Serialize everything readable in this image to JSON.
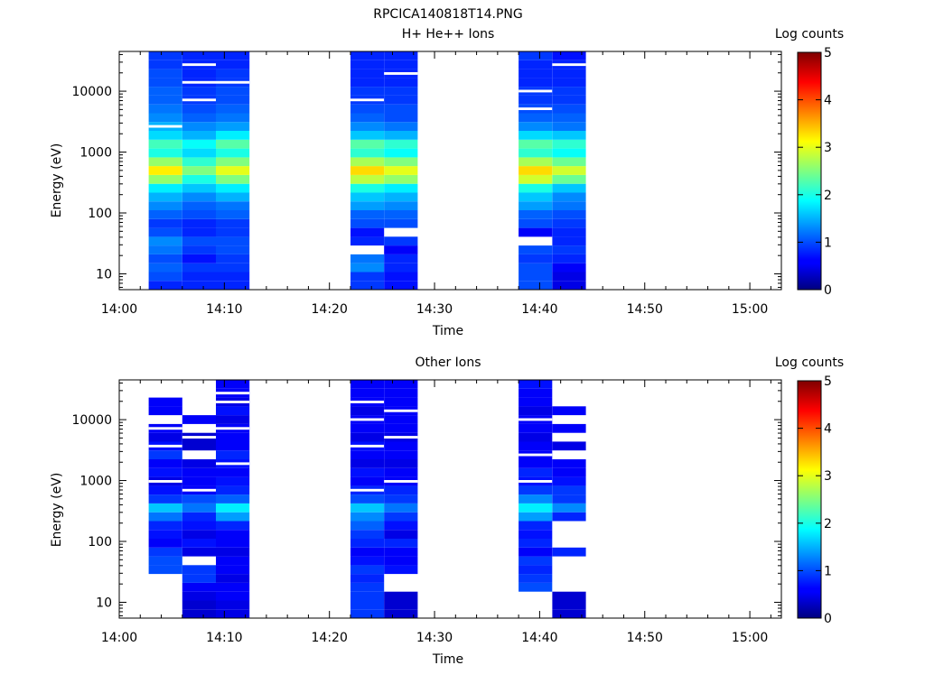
{
  "page_title": "RPCICA140818T14.PNG",
  "chart_data": [
    {
      "type": "heatmap",
      "title": "H+ He++ Ions",
      "xlabel": "Time",
      "ylabel": "Energy (eV)",
      "colorbar_label": "Log counts",
      "x_ticks": [
        "14:00",
        "14:10",
        "14:20",
        "14:30",
        "14:40",
        "14:50",
        "15:00"
      ],
      "x_range_min": [
        0,
        63
      ],
      "y_scale": "log",
      "y_ticks": [
        10,
        100,
        1000,
        10000
      ],
      "y_range": [
        5.5,
        45000
      ],
      "colorbar_ticks": [
        0,
        1,
        2,
        3,
        4,
        5
      ],
      "colorbar_range": [
        0,
        5
      ],
      "grid": false,
      "columns": [
        {
          "t0": 2.8,
          "t1": 6.0,
          "profile": [
            0.8,
            1.0,
            1.1,
            1.0,
            1.2,
            1.3,
            1.0,
            0.9,
            1.1,
            1.3,
            1.5,
            1.8,
            2.6,
            3.2,
            2.6,
            2.0,
            2.2,
            1.7,
            1.5,
            1.3,
            1.2,
            1.1,
            1.1,
            1.0,
            1.0,
            0.9,
            0.9
          ],
          "gaps": [
            18
          ]
        },
        {
          "t0": 6.0,
          "t1": 9.2,
          "profile": [
            0.8,
            0.8,
            0.9,
            0.7,
            0.9,
            1.0,
            0.8,
            0.8,
            1.0,
            1.1,
            1.3,
            1.6,
            2.0,
            2.5,
            2.1,
            1.7,
            1.9,
            1.5,
            1.3,
            1.1,
            1.0,
            0.9,
            0.9,
            0.8,
            0.8,
            0.8,
            0.8
          ],
          "gaps": [
            21,
            23,
            25
          ]
        },
        {
          "t0": 9.2,
          "t1": 12.4,
          "profile": [
            0.8,
            0.8,
            0.9,
            0.9,
            1.0,
            1.0,
            0.9,
            0.9,
            1.1,
            1.2,
            1.5,
            1.8,
            2.5,
            3.0,
            2.5,
            2.0,
            2.3,
            1.8,
            1.4,
            1.2,
            1.1,
            1.0,
            1.0,
            0.9,
            0.9,
            0.8,
            0.8
          ],
          "gaps": [
            23
          ]
        },
        {
          "t0": 22.0,
          "t1": 25.2,
          "profile": [
            0.9,
            0.9,
            1.3,
            1.2,
            null,
            0.8,
            0.7,
            1.0,
            1.1,
            1.4,
            1.6,
            2.0,
            2.8,
            3.3,
            2.7,
            2.1,
            2.3,
            1.6,
            1.3,
            1.1,
            1.0,
            0.9,
            0.9,
            0.8,
            0.8,
            0.8,
            0.8
          ],
          "gaps": [
            21
          ]
        },
        {
          "t0": 25.2,
          "t1": 28.4,
          "profile": [
            0.7,
            0.7,
            0.8,
            0.8,
            0.6,
            0.9,
            null,
            1.0,
            1.1,
            1.3,
            1.5,
            1.8,
            2.6,
            3.0,
            2.5,
            1.9,
            2.1,
            1.5,
            1.2,
            1.0,
            1.0,
            0.9,
            0.9,
            0.8,
            0.8,
            0.8,
            0.8
          ],
          "gaps": [
            24
          ]
        },
        {
          "t0": 38.0,
          "t1": 41.2,
          "profile": [
            1.0,
            1.0,
            1.0,
            0.9,
            1.0,
            null,
            0.6,
            1.0,
            1.1,
            1.4,
            1.6,
            2.0,
            2.9,
            3.3,
            2.7,
            2.1,
            2.3,
            1.7,
            1.3,
            1.1,
            1.0,
            0.9,
            0.9,
            0.8,
            0.8,
            0.8,
            0.9
          ],
          "gaps": [
            20,
            22
          ]
        },
        {
          "t0": 41.2,
          "t1": 44.4,
          "profile": [
            0.5,
            0.5,
            0.6,
            0.8,
            0.9,
            0.8,
            0.8,
            0.9,
            1.0,
            1.2,
            1.3,
            1.6,
            2.4,
            2.9,
            2.4,
            1.9,
            2.1,
            1.6,
            1.2,
            1.1,
            1.0,
            0.9,
            0.9,
            0.8,
            0.8,
            0.8,
            0.7
          ],
          "gaps": [
            25
          ]
        }
      ]
    },
    {
      "type": "heatmap",
      "title": "Other Ions",
      "xlabel": "Time",
      "ylabel": "Energy (eV)",
      "colorbar_label": "Log counts",
      "x_ticks": [
        "14:00",
        "14:10",
        "14:20",
        "14:30",
        "14:40",
        "14:50",
        "15:00"
      ],
      "x_range_min": [
        0,
        63
      ],
      "y_scale": "log",
      "y_ticks": [
        10,
        100,
        1000,
        10000
      ],
      "y_range": [
        5.5,
        45000
      ],
      "colorbar_ticks": [
        0,
        1,
        2,
        3,
        4,
        5
      ],
      "colorbar_range": [
        0,
        5
      ],
      "grid": false,
      "columns": [
        {
          "t0": 2.8,
          "t1": 6.0,
          "profile": [
            null,
            null,
            null,
            null,
            null,
            1.0,
            1.0,
            0.9,
            0.6,
            0.7,
            0.8,
            1.2,
            1.6,
            0.9,
            0.7,
            0.5,
            0.7,
            0.6,
            0.9,
            0.7,
            0.5,
            0.6,
            null,
            0.6,
            0.6,
            null,
            null
          ],
          "gaps": [
            15,
            19,
            21
          ]
        },
        {
          "t0": 6.0,
          "t1": 9.2,
          "profile": [
            0.4,
            0.4,
            0.5,
            0.6,
            0.9,
            0.9,
            null,
            0.5,
            0.7,
            0.5,
            0.7,
            0.8,
            1.2,
            1.0,
            0.6,
            0.6,
            0.6,
            0.5,
            null,
            0.4,
            0.4,
            null,
            0.6,
            null,
            null,
            null,
            null
          ],
          "gaps": [
            14,
            20
          ]
        },
        {
          "t0": 9.2,
          "t1": 12.4,
          "profile": [
            0.5,
            0.5,
            0.6,
            0.6,
            0.5,
            0.6,
            0.6,
            0.5,
            0.6,
            0.6,
            0.8,
            1.4,
            1.8,
            1.1,
            0.8,
            0.7,
            0.6,
            0.7,
            0.8,
            0.6,
            0.6,
            0.6,
            0.5,
            0.7,
            0.5,
            0.6,
            0.6
          ],
          "gaps": [
            17,
            21,
            24,
            25
          ]
        },
        {
          "t0": 22.0,
          "t1": 25.2,
          "profile": [
            0.9,
            0.9,
            0.9,
            0.9,
            0.8,
            0.9,
            0.7,
            0.6,
            0.8,
            0.9,
            1.1,
            1.3,
            1.6,
            1.0,
            0.8,
            0.6,
            0.7,
            0.5,
            0.6,
            0.7,
            0.5,
            0.6,
            0.6,
            0.5,
            0.6,
            0.6,
            0.6
          ],
          "gaps": [
            14,
            19,
            22,
            24
          ]
        },
        {
          "t0": 25.2,
          "t1": 28.4,
          "profile": [
            0.4,
            0.4,
            0.4,
            null,
            null,
            0.7,
            0.6,
            0.6,
            0.8,
            0.5,
            0.7,
            0.9,
            1.2,
            0.9,
            0.8,
            0.6,
            0.6,
            0.5,
            0.6,
            0.6,
            0.5,
            0.6,
            0.6,
            0.6,
            0.6,
            0.6,
            0.6
          ],
          "gaps": [
            15,
            20,
            23
          ]
        },
        {
          "t0": 38.0,
          "t1": 41.2,
          "profile": [
            null,
            null,
            null,
            1.0,
            0.9,
            0.8,
            0.9,
            0.6,
            0.8,
            0.7,
            0.8,
            1.4,
            1.8,
            1.3,
            0.9,
            0.7,
            0.8,
            0.6,
            0.6,
            0.6,
            0.5,
            0.6,
            0.6,
            0.5,
            0.6,
            0.6,
            0.7
          ],
          "gaps": [
            15,
            18,
            22
          ]
        },
        {
          "t0": 41.2,
          "t1": 44.4,
          "profile": [
            0.4,
            0.4,
            0.4,
            null,
            null,
            null,
            null,
            0.8,
            null,
            null,
            null,
            0.8,
            1.3,
            0.9,
            0.9,
            0.7,
            0.6,
            0.6,
            null,
            0.5,
            null,
            0.6,
            null,
            0.6,
            null,
            null,
            null
          ],
          "gaps": [
            20,
            22
          ]
        }
      ]
    }
  ]
}
